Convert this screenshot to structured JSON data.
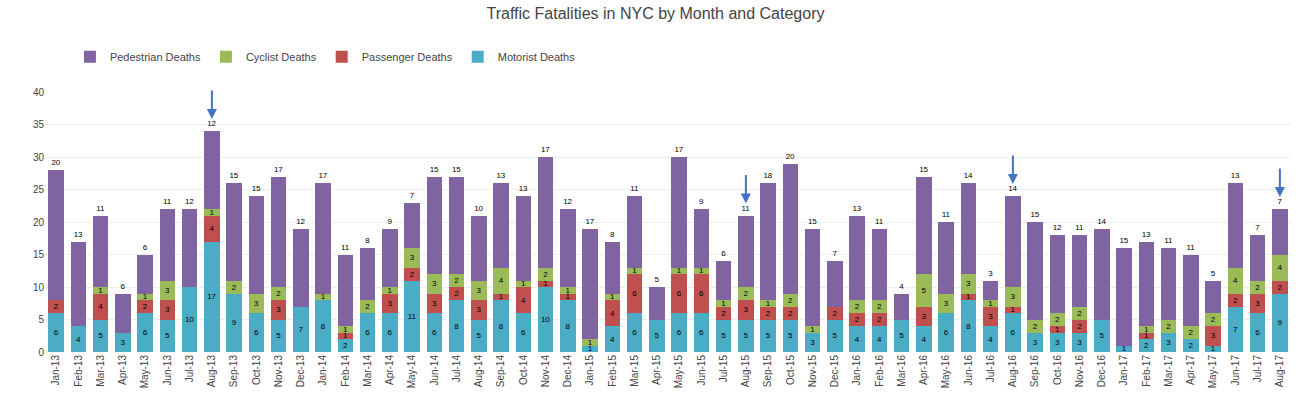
{
  "chart_data": {
    "type": "bar",
    "title": "Traffic Fatalities in NYC by Month and Category",
    "stacked": true,
    "data_labels": true,
    "grid": true,
    "legend": "upper left",
    "categories": [
      "Jan-13",
      "Feb-13",
      "Mar-13",
      "Apr-13",
      "May-13",
      "Jun-13",
      "Jul-13",
      "Aug-13",
      "Sep-13",
      "Oct-13",
      "Nov-13",
      "Dec-13",
      "Jan-14",
      "Feb-14",
      "Mar-14",
      "Apr-14",
      "May-14",
      "Jun-14",
      "Jul-14",
      "Aug-14",
      "Sep-14",
      "Oct-14",
      "Nov-14",
      "Dec-14",
      "Jan-15",
      "Feb-15",
      "Mar-15",
      "Apr-15",
      "May-15",
      "Jun-15",
      "Jul-15",
      "Aug-15",
      "Sep-15",
      "Oct-15",
      "Nov-15",
      "Dec-15",
      "Jan-16",
      "Feb-16",
      "Mar-16",
      "Apr-16",
      "May-16",
      "Jun-16",
      "Jul-16",
      "Aug-16",
      "Sep-16",
      "Oct-16",
      "Nov-16",
      "Dec-16",
      "Jan-17",
      "Feb-17",
      "Mar-17",
      "Apr-17",
      "May-17",
      "Jun-17",
      "Jul-17",
      "Aug-17"
    ],
    "series": [
      {
        "name": "Motorist Deaths",
        "color": "#4BACC6",
        "values": [
          6,
          4,
          5,
          3,
          6,
          5,
          10,
          17,
          9,
          6,
          5,
          7,
          8,
          2,
          6,
          6,
          11,
          6,
          8,
          5,
          8,
          6,
          10,
          8,
          1,
          4,
          6,
          5,
          6,
          6,
          5,
          5,
          5,
          5,
          3,
          5,
          4,
          4,
          5,
          4,
          6,
          8,
          4,
          6,
          3,
          3,
          3,
          5,
          1,
          2,
          3,
          2,
          1,
          7,
          6,
          9
        ]
      },
      {
        "name": "Passenger Deaths",
        "color": "#C0504D",
        "values": [
          2,
          0,
          4,
          0,
          2,
          3,
          0,
          4,
          0,
          0,
          3,
          0,
          0,
          1,
          0,
          3,
          2,
          3,
          2,
          3,
          1,
          4,
          1,
          1,
          0,
          4,
          6,
          0,
          6,
          6,
          2,
          3,
          2,
          2,
          0,
          2,
          2,
          2,
          0,
          3,
          0,
          1,
          3,
          1,
          0,
          1,
          2,
          0,
          0,
          1,
          0,
          0,
          3,
          2,
          3,
          2
        ]
      },
      {
        "name": "Cyclist Deaths",
        "color": "#9BBB59",
        "values": [
          0,
          0,
          1,
          0,
          1,
          3,
          0,
          1,
          2,
          3,
          2,
          0,
          1,
          1,
          2,
          1,
          3,
          3,
          2,
          3,
          4,
          1,
          2,
          1,
          1,
          1,
          1,
          0,
          1,
          1,
          1,
          2,
          1,
          2,
          1,
          0,
          2,
          2,
          0,
          5,
          3,
          3,
          1,
          3,
          2,
          2,
          2,
          0,
          0,
          1,
          2,
          2,
          2,
          4,
          2,
          4
        ]
      },
      {
        "name": "Pedestrian Deaths",
        "color": "#8064A2",
        "values": [
          20,
          13,
          11,
          6,
          6,
          11,
          12,
          12,
          15,
          15,
          17,
          12,
          17,
          11,
          8,
          9,
          7,
          15,
          15,
          10,
          13,
          13,
          17,
          12,
          17,
          8,
          11,
          5,
          17,
          9,
          6,
          11,
          18,
          20,
          15,
          7,
          13,
          11,
          4,
          15,
          11,
          14,
          3,
          14,
          15,
          12,
          11,
          14,
          15,
          13,
          11,
          11,
          5,
          13,
          7,
          7
        ]
      }
    ],
    "annotations": [
      {
        "x": "Aug-13",
        "color": "#4472C4"
      },
      {
        "x": "Aug-15",
        "color": "#4472C4"
      },
      {
        "x": "Aug-16",
        "color": "#4472C4"
      },
      {
        "x": "Aug-17",
        "color": "#4472C4"
      }
    ],
    "ylim": [
      0,
      40
    ],
    "yticks": [
      0,
      5,
      10,
      15,
      20,
      25,
      30,
      35,
      40
    ]
  }
}
